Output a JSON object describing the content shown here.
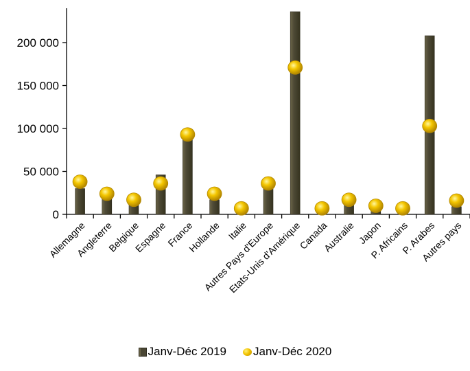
{
  "chart_data": {
    "type": "bar",
    "categories": [
      "Allemagne",
      "Angleterre",
      "Belgique",
      "Espagne",
      "France",
      "Hollande",
      "Italie",
      "Autres Pays d'Europe",
      "Etats-Unis d'Amérique",
      "Canada",
      "Australie",
      "Japon",
      "P. Africains",
      "P. Arabes",
      "Autres pays"
    ],
    "series": [
      {
        "name": "Janv-Déc 2019",
        "kind": "bar",
        "color": "#4a4634",
        "values": [
          30000,
          19000,
          13000,
          46000,
          90000,
          17000,
          4000,
          30000,
          236000,
          3000,
          12000,
          6000,
          3000,
          208000,
          9000
        ]
      },
      {
        "name": "Janv-Déc 2020",
        "kind": "marker",
        "color": "#f2c200",
        "values": [
          38000,
          24000,
          17000,
          36000,
          93000,
          24000,
          7000,
          36000,
          171000,
          7000,
          17000,
          10000,
          7000,
          103000,
          16000
        ]
      }
    ],
    "yticks": [
      "0",
      "50 000",
      "100 000",
      "150 000",
      "200 000"
    ],
    "ytick_values": [
      0,
      50000,
      100000,
      150000,
      200000
    ],
    "ylim": [
      0,
      240000
    ],
    "legend_position": "bottom",
    "grid": false
  }
}
